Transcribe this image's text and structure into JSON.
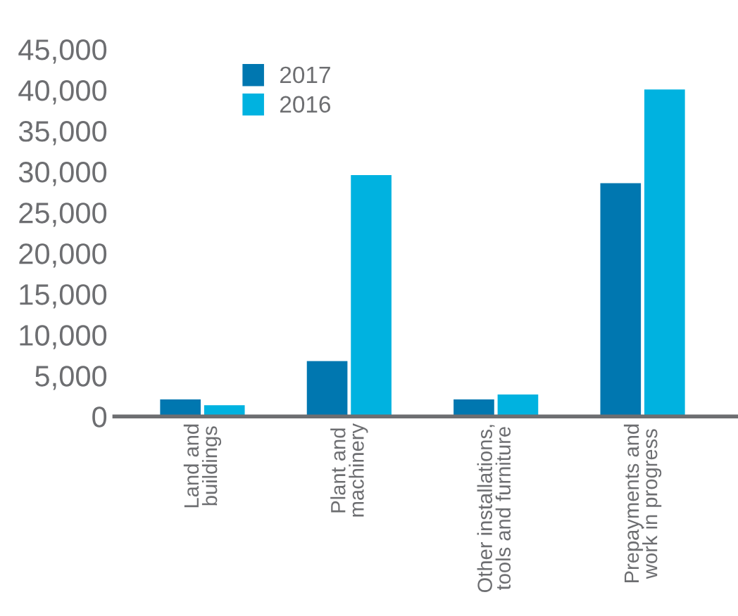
{
  "chart_data": {
    "type": "bar",
    "categories": [
      "Land and\nbuildings",
      "Plant and\nmachinery",
      "Other installations,\ntools and furniture",
      "Prepayments and\nwork in progress"
    ],
    "series": [
      {
        "name": "2017",
        "color": "#0077b0",
        "values": [
          2200,
          6900,
          2200,
          28700
        ]
      },
      {
        "name": "2016",
        "color": "#00b2e0",
        "values": [
          1500,
          29700,
          2800,
          40200
        ]
      }
    ],
    "ylim": [
      0,
      45000
    ],
    "yticks": [
      {
        "value": 0,
        "label": "0"
      },
      {
        "value": 5000,
        "label": "5,000"
      },
      {
        "value": 10000,
        "label": "10,000"
      },
      {
        "value": 15000,
        "label": "15,000"
      },
      {
        "value": 20000,
        "label": "20,000"
      },
      {
        "value": 25000,
        "label": "25,000"
      },
      {
        "value": 30000,
        "label": "30,000"
      },
      {
        "value": 35000,
        "label": "35,000"
      },
      {
        "value": 40000,
        "label": "40,000"
      },
      {
        "value": 45000,
        "label": "45,000"
      }
    ],
    "grid": false,
    "legend": "top left"
  }
}
